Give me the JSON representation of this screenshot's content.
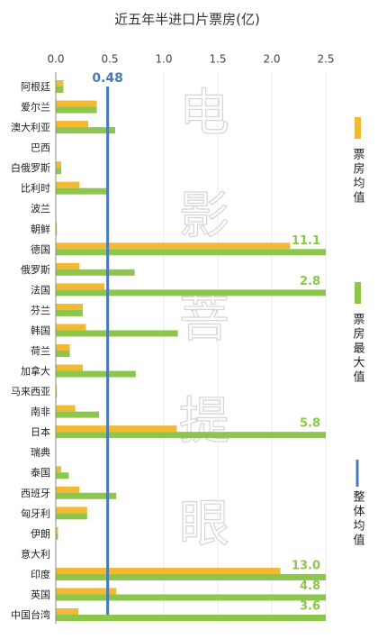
{
  "chart_data": {
    "type": "barh",
    "title": "近五年半进口片票房(亿)",
    "watermark": "电影菩提眼",
    "categories": [
      "阿根廷",
      "爱尔兰",
      "澳大利亚",
      "巴西",
      "白俄罗斯",
      "比利时",
      "波兰",
      "朝鲜",
      "德国",
      "俄罗斯",
      "法国",
      "芬兰",
      "韩国",
      "荷兰",
      "加拿大",
      "马来西亚",
      "南非",
      "日本",
      "瑞典",
      "泰国",
      "西班牙",
      "匈牙利",
      "伊朗",
      "意大利",
      "印度",
      "英国",
      "中国台湾"
    ],
    "series": [
      {
        "name": "票房均值",
        "color": "#f2b933",
        "values": [
          0.07,
          0.38,
          0.3,
          0,
          0.05,
          0.22,
          0,
          0.01,
          2.17,
          0.22,
          0.45,
          0.25,
          0.28,
          0.13,
          0.25,
          0.01,
          0.18,
          1.12,
          0,
          0.05,
          0.22,
          0.29,
          0.02,
          0,
          2.08,
          0.56,
          0.21
        ]
      },
      {
        "name": "票房最大值",
        "color": "#8cc64a",
        "values": [
          0.07,
          0.38,
          0.55,
          0,
          0.05,
          0.47,
          0,
          0.01,
          11.1,
          0.73,
          2.8,
          0.25,
          1.13,
          0.13,
          0.74,
          0.01,
          0.4,
          5.8,
          0,
          0.12,
          0.56,
          0.29,
          0.02,
          0,
          13.0,
          4.8,
          3.6
        ],
        "value_labels": [
          null,
          null,
          null,
          null,
          null,
          null,
          null,
          null,
          "11.1",
          null,
          "2.8",
          null,
          null,
          null,
          null,
          null,
          null,
          "5.8",
          null,
          null,
          null,
          null,
          null,
          null,
          "13.0",
          "4.8",
          "3.6"
        ]
      }
    ],
    "reference_line": {
      "name": "整体均值",
      "value": 0.48,
      "color": "#4a7ab5"
    },
    "xlim": [
      0,
      2.5
    ],
    "xticks": [
      {
        "value": 0,
        "label": "0.0"
      },
      0.5,
      {
        "value": 1,
        "label": "1.0"
      },
      1.5,
      {
        "value": 2,
        "label": "2.0"
      },
      2.5
    ],
    "grid": true
  }
}
